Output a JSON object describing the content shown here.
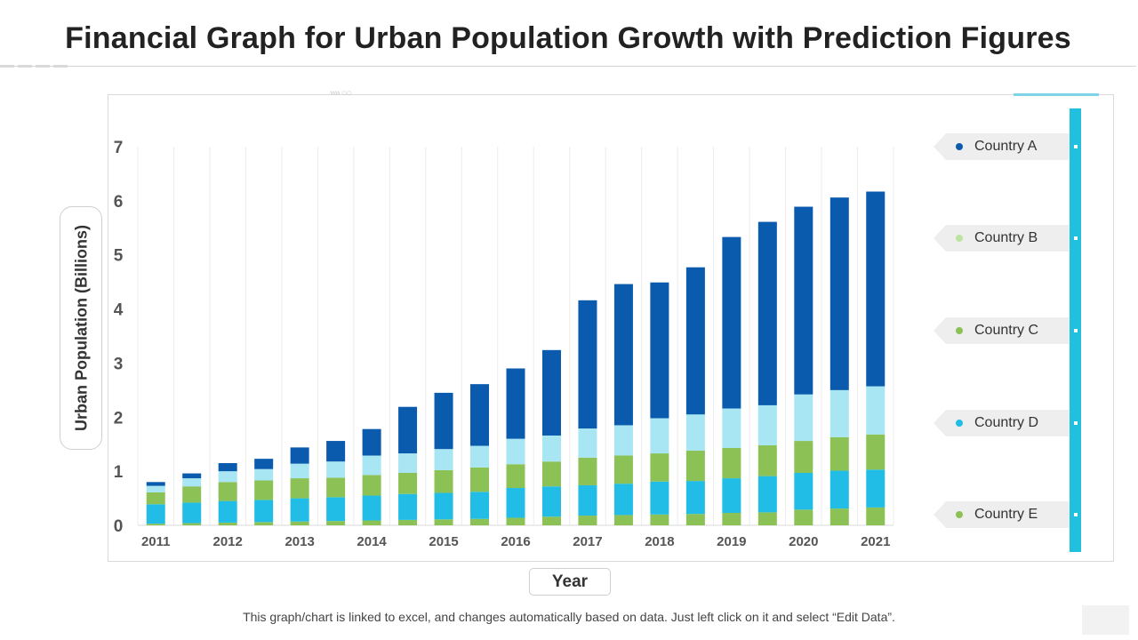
{
  "title": "Financial Graph for Urban Population Growth with Prediction Figures",
  "footnote": "This graph/chart is linked to excel, and changes automatically based on data. Just left click on it and select “Edit Data”.",
  "decoration_glyphs": "›››› ○○",
  "colors": {
    "Country A": "#0a5aad",
    "Country B": "#a7e6f2",
    "Country C": "#8cc156",
    "Country D": "#22bde6",
    "Country E": "#8cc156",
    "legend_dot_B": "#bde3a3",
    "accent": "#20c0de"
  },
  "legend": [
    {
      "name": "Country A",
      "dot_color": "#0a5aad"
    },
    {
      "name": "Country B",
      "dot_color": "#bde3a3"
    },
    {
      "name": "Country C",
      "dot_color": "#8cc156"
    },
    {
      "name": "Country D",
      "dot_color": "#22bde6"
    },
    {
      "name": "Country E",
      "dot_color": "#8cc156"
    }
  ],
  "chart_data": {
    "type": "bar",
    "stacked": true,
    "title": "Financial Graph for Urban Population Growth with Prediction Figures",
    "xlabel": "Year",
    "ylabel": "Urban Population (Billions)",
    "ylim": [
      0,
      7
    ],
    "yticks": [
      0,
      1,
      2,
      3,
      4,
      5,
      6,
      7
    ],
    "x_tick_labels": [
      "2011",
      "2012",
      "2013",
      "2014",
      "2015",
      "2016",
      "2017",
      "2018",
      "2019",
      "2020",
      "2021"
    ],
    "categories": [
      "2011",
      "2011.5",
      "2012",
      "2012.5",
      "2013",
      "2013.5",
      "2014",
      "2014.5",
      "2015",
      "2015.5",
      "2016",
      "2016.5",
      "2017",
      "2017.5",
      "2018",
      "2018.5",
      "2019",
      "2019.5",
      "2020",
      "2020.5",
      "2021"
    ],
    "legend_position": "right",
    "series": [
      {
        "name": "Country E",
        "values": [
          0.03,
          0.04,
          0.05,
          0.06,
          0.07,
          0.08,
          0.09,
          0.1,
          0.11,
          0.12,
          0.14,
          0.16,
          0.18,
          0.19,
          0.2,
          0.21,
          0.23,
          0.24,
          0.29,
          0.31,
          0.33
        ]
      },
      {
        "name": "Country D",
        "values": [
          0.36,
          0.38,
          0.4,
          0.41,
          0.43,
          0.44,
          0.46,
          0.48,
          0.49,
          0.5,
          0.55,
          0.56,
          0.56,
          0.58,
          0.61,
          0.61,
          0.64,
          0.67,
          0.68,
          0.7,
          0.7
        ]
      },
      {
        "name": "Country C",
        "values": [
          0.22,
          0.3,
          0.35,
          0.36,
          0.37,
          0.36,
          0.38,
          0.39,
          0.42,
          0.45,
          0.44,
          0.46,
          0.51,
          0.52,
          0.52,
          0.56,
          0.56,
          0.57,
          0.59,
          0.62,
          0.65
        ]
      },
      {
        "name": "Country B",
        "values": [
          0.12,
          0.15,
          0.2,
          0.21,
          0.27,
          0.3,
          0.36,
          0.36,
          0.39,
          0.4,
          0.47,
          0.48,
          0.54,
          0.56,
          0.65,
          0.67,
          0.73,
          0.74,
          0.86,
          0.87,
          0.89
        ]
      },
      {
        "name": "Country A",
        "values": [
          0.07,
          0.09,
          0.15,
          0.19,
          0.3,
          0.38,
          0.49,
          0.86,
          1.04,
          1.14,
          1.3,
          1.58,
          2.37,
          2.61,
          2.51,
          2.72,
          3.17,
          3.39,
          3.47,
          3.56,
          3.6
        ]
      }
    ]
  }
}
